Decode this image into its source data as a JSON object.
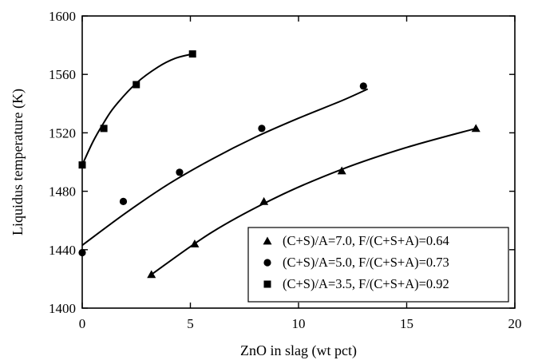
{
  "chart_data": {
    "type": "scatter",
    "title": "",
    "xlabel": "ZnO in slag (wt pct)",
    "ylabel": "Liquidus temperature (K)",
    "xlim": [
      0,
      20
    ],
    "ylim": [
      1400,
      1600
    ],
    "x_ticks": [
      0,
      5,
      10,
      15,
      20
    ],
    "y_ticks": [
      1400,
      1440,
      1480,
      1520,
      1560,
      1600
    ],
    "grid": false,
    "legend_position": "bottom-right",
    "series": [
      {
        "name": "(C+S)/A=7.0, F/(C+S+A)=0.64",
        "marker": "triangle",
        "x": [
          3.2,
          5.2,
          8.4,
          12.0,
          18.2
        ],
        "y": [
          1423,
          1444,
          1473,
          1494,
          1523
        ],
        "fit": [
          [
            3.2,
            1423
          ],
          [
            6,
            1452
          ],
          [
            9,
            1476
          ],
          [
            12,
            1495
          ],
          [
            15,
            1510
          ],
          [
            18.2,
            1523
          ]
        ]
      },
      {
        "name": "(C+S)/A=5.0, F/(C+S+A)=0.73",
        "marker": "circle",
        "x": [
          0.0,
          1.9,
          4.5,
          8.3,
          13.0
        ],
        "y": [
          1438,
          1473,
          1493,
          1523,
          1552
        ],
        "fit": [
          [
            0,
            1443
          ],
          [
            2,
            1465
          ],
          [
            4,
            1485
          ],
          [
            6,
            1502
          ],
          [
            8,
            1517
          ],
          [
            10,
            1530
          ],
          [
            12,
            1542
          ],
          [
            13.2,
            1550
          ]
        ]
      },
      {
        "name": "(C+S)/A=3.5, F/(C+S+A)=0.92",
        "marker": "square",
        "x": [
          0.0,
          1.0,
          2.5,
          5.1
        ],
        "y": [
          1498,
          1523,
          1553,
          1574
        ],
        "fit": [
          [
            0,
            1498
          ],
          [
            0.5,
            1514
          ],
          [
            1,
            1527
          ],
          [
            1.5,
            1538
          ],
          [
            2.5,
            1554
          ],
          [
            3.5,
            1565
          ],
          [
            4.3,
            1571
          ],
          [
            5.1,
            1574
          ]
        ]
      }
    ]
  }
}
